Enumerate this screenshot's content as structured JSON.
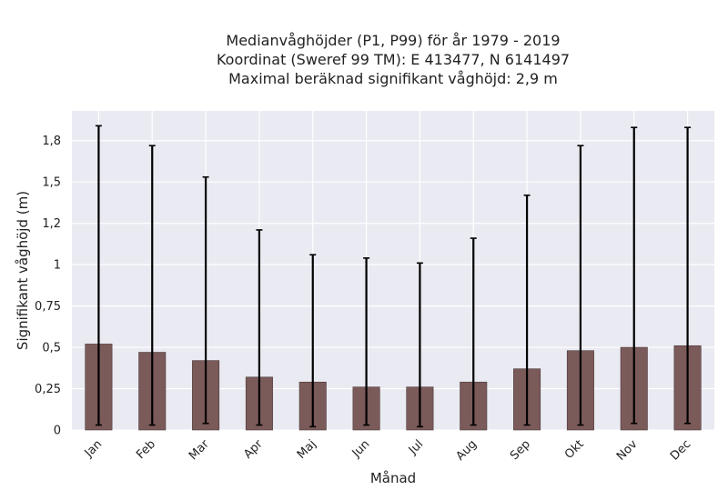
{
  "chart_data": {
    "type": "bar",
    "title_lines": [
      "Medianvåghöjder (P1, P99) för år 1979 - 2019",
      "Koordinat (Sweref 99 TM): E 413477, N 6141497",
      "Maximal beräknad signifikant våghöjd: 2,9 m"
    ],
    "xlabel": "Månad",
    "ylabel": "Signifikant våghöjd (m)",
    "categories": [
      "Jan",
      "Feb",
      "Mar",
      "Apr",
      "Maj",
      "Jun",
      "Jul",
      "Aug",
      "Sep",
      "Okt",
      "Nov",
      "Dec"
    ],
    "values": [
      0.52,
      0.47,
      0.42,
      0.32,
      0.29,
      0.26,
      0.26,
      0.29,
      0.37,
      0.48,
      0.5,
      0.51
    ],
    "p1": [
      0.03,
      0.03,
      0.04,
      0.03,
      0.02,
      0.03,
      0.02,
      0.03,
      0.03,
      0.03,
      0.04,
      0.04
    ],
    "p99": [
      1.84,
      1.72,
      1.53,
      1.21,
      1.06,
      1.04,
      1.01,
      1.16,
      1.42,
      1.72,
      1.83,
      1.83
    ],
    "ylim": [
      0,
      1.93
    ],
    "yticks": [
      0,
      0.25,
      0.5,
      0.75,
      1,
      1.25,
      1.5,
      1.75
    ],
    "ytick_labels": [
      "0",
      "0,25",
      "0,5",
      "0,75",
      "1",
      "1,2",
      "1,5",
      "1,8"
    ],
    "grid": true,
    "bar_color": "#7b5a5a",
    "background_color": "#eaeaf2"
  }
}
